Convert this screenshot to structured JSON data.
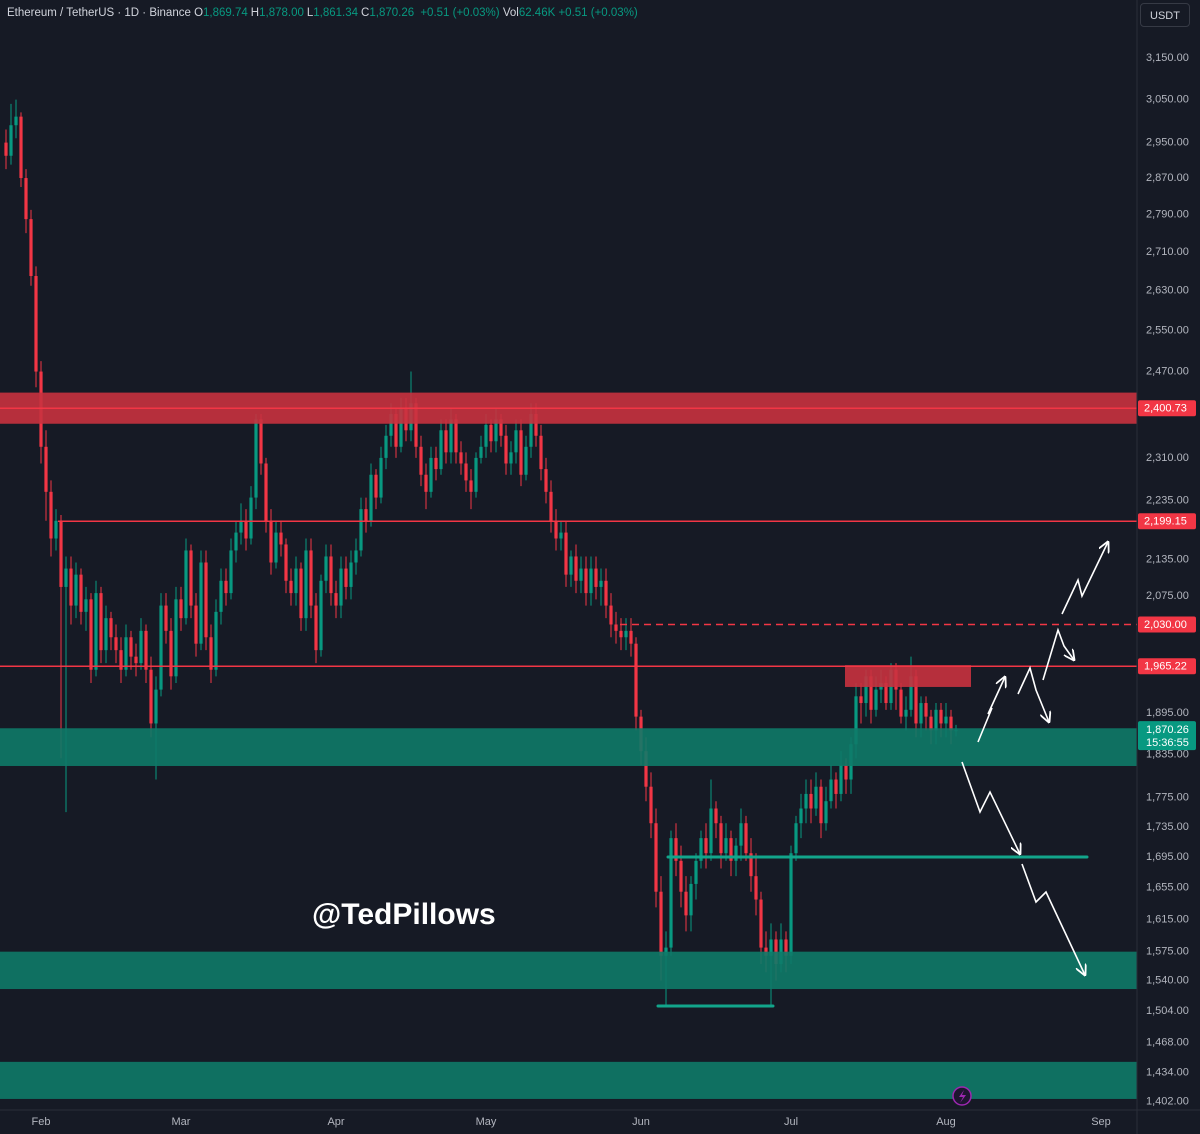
{
  "header": {
    "symbol": "Ethereum / TetherUS · 1D · Binance",
    "ohlc": [
      {
        "key": "O",
        "value": "1,869.74"
      },
      {
        "key": "H",
        "value": "1,878.00"
      },
      {
        "key": "L",
        "value": "1,861.34"
      },
      {
        "key": "C",
        "value": "1,870.26"
      }
    ],
    "change": "+0.51 (+0.03%)",
    "volume": {
      "key": "Vol",
      "value": "62.46K",
      "change": "+0.51 (+0.03%)"
    },
    "currency": "USDT"
  },
  "watermark": "@TedPillows",
  "chart_data": {
    "type": "candlestick",
    "log_scale": true,
    "up_color": "#089981",
    "down_color": "#f23645",
    "xlim": [
      -1.2,
      226.2
    ],
    "xticks": [
      {
        "value": 7,
        "label": "Feb"
      },
      {
        "value": 35,
        "label": "Mar"
      },
      {
        "value": 66,
        "label": "Apr"
      },
      {
        "value": 96,
        "label": "May"
      },
      {
        "value": 127,
        "label": "Jun"
      },
      {
        "value": 157,
        "label": "Jul"
      },
      {
        "value": 188,
        "label": "Aug"
      },
      {
        "value": 219,
        "label": "Sep"
      }
    ],
    "ylim": [
      1393,
      3295
    ],
    "yticks": [
      {
        "value": 3150,
        "label": "3,150.00"
      },
      {
        "value": 3050,
        "label": "3,050.00"
      },
      {
        "value": 2950,
        "label": "2,950.00"
      },
      {
        "value": 2870,
        "label": "2,870.00"
      },
      {
        "value": 2790,
        "label": "2,790.00"
      },
      {
        "value": 2710,
        "label": "2,710.00"
      },
      {
        "value": 2630,
        "label": "2,630.00"
      },
      {
        "value": 2550,
        "label": "2,550.00"
      },
      {
        "value": 2470,
        "label": "2,470.00"
      },
      {
        "value": 2310,
        "label": "2,310.00"
      },
      {
        "value": 2235,
        "label": "2,235.00"
      },
      {
        "value": 2135,
        "label": "2,135.00"
      },
      {
        "value": 2075,
        "label": "2,075.00"
      },
      {
        "value": 1895,
        "label": "1,895.00"
      },
      {
        "value": 1835,
        "label": "1,835.00"
      },
      {
        "value": 1775,
        "label": "1,775.00"
      },
      {
        "value": 1735,
        "label": "1,735.00"
      },
      {
        "value": 1695,
        "label": "1,695.00"
      },
      {
        "value": 1655,
        "label": "1,655.00"
      },
      {
        "value": 1615,
        "label": "1,615.00"
      },
      {
        "value": 1575,
        "label": "1,575.00"
      },
      {
        "value": 1540,
        "label": "1,540.00"
      },
      {
        "value": 1504,
        "label": "1,504.00"
      },
      {
        "value": 1468,
        "label": "1,468.00"
      },
      {
        "value": 1434,
        "label": "1,434.00"
      },
      {
        "value": 1402,
        "label": "1,402.00"
      }
    ],
    "open": [
      2950,
      2920,
      2990,
      3010,
      2870,
      2780,
      2660,
      2470,
      2330,
      2250,
      2170,
      2200,
      2090,
      2120,
      2060,
      2110,
      2050,
      2070,
      1960,
      2080,
      1990,
      2040,
      2010,
      1990,
      1960,
      2010,
      1980,
      1970,
      2020,
      1960,
      1880,
      1930,
      2060,
      2020,
      1950,
      2070,
      2040,
      2150,
      2060,
      2000,
      2130,
      2010,
      1960,
      2050,
      2100,
      2080,
      2150,
      2180,
      2200,
      2170,
      2240,
      2380,
      2300,
      2200,
      2130,
      2180,
      2160,
      2100,
      2080,
      2120,
      2040,
      2150,
      2060,
      1990,
      2100,
      2140,
      2080,
      2060,
      2120,
      2090,
      2130,
      2150,
      2220,
      2200,
      2280,
      2240,
      2310,
      2350,
      2390,
      2330,
      2400,
      2360,
      2410,
      2330,
      2280,
      2250,
      2310,
      2290,
      2360,
      2320,
      2380,
      2320,
      2300,
      2270,
      2250,
      2310,
      2330,
      2370,
      2340,
      2380,
      2350,
      2300,
      2320,
      2360,
      2280,
      2330,
      2390,
      2350,
      2290,
      2250,
      2200,
      2170,
      2180,
      2110,
      2140,
      2100,
      2120,
      2080,
      2120,
      2090,
      2100,
      2060,
      2030,
      2020,
      2010,
      2020,
      2000,
      1890,
      1840,
      1790,
      1740,
      1650,
      1570,
      1580,
      1720,
      1690,
      1650,
      1620,
      1660,
      1690,
      1720,
      1700,
      1760,
      1740,
      1700,
      1720,
      1690,
      1710,
      1740,
      1700,
      1670,
      1640,
      1580,
      1570,
      1590,
      1560,
      1590,
      1570,
      1700,
      1740,
      1760,
      1780,
      1760,
      1790,
      1740,
      1770,
      1800,
      1780,
      1820,
      1800,
      1850,
      1920,
      1910,
      1950,
      1900,
      1930,
      1940,
      1910,
      1960,
      1930,
      1890,
      1900,
      1950,
      1880,
      1910,
      1890,
      1870,
      1900,
      1880,
      1890,
      1869.74
    ],
    "high": [
      2980,
      3040,
      3050,
      3020,
      2890,
      2800,
      2680,
      2490,
      2360,
      2270,
      2220,
      2210,
      2140,
      2140,
      2130,
      2120,
      2090,
      2080,
      2100,
      2090,
      2060,
      2050,
      2030,
      2010,
      2030,
      2020,
      2000,
      2040,
      2030,
      1980,
      1950,
      2080,
      2080,
      2040,
      2090,
      2090,
      2170,
      2160,
      2080,
      2150,
      2150,
      2030,
      2070,
      2120,
      2120,
      2170,
      2200,
      2230,
      2220,
      2260,
      2390,
      2390,
      2310,
      2220,
      2200,
      2200,
      2170,
      2120,
      2140,
      2130,
      2170,
      2170,
      2080,
      2110,
      2160,
      2160,
      2100,
      2140,
      2140,
      2150,
      2170,
      2240,
      2240,
      2300,
      2290,
      2330,
      2370,
      2410,
      2400,
      2420,
      2420,
      2470,
      2420,
      2350,
      2300,
      2330,
      2330,
      2380,
      2380,
      2400,
      2390,
      2340,
      2320,
      2290,
      2320,
      2350,
      2390,
      2380,
      2400,
      2390,
      2370,
      2340,
      2380,
      2380,
      2350,
      2410,
      2410,
      2370,
      2310,
      2270,
      2220,
      2200,
      2200,
      2150,
      2160,
      2140,
      2140,
      2140,
      2140,
      2120,
      2120,
      2080,
      2050,
      2040,
      2040,
      2040,
      2010,
      1900,
      1860,
      1810,
      1760,
      1670,
      1600,
      1730,
      1740,
      1710,
      1670,
      1670,
      1700,
      1730,
      1740,
      1800,
      1770,
      1750,
      1740,
      1730,
      1720,
      1760,
      1750,
      1720,
      1700,
      1650,
      1600,
      1610,
      1600,
      1610,
      1600,
      1710,
      1750,
      1780,
      1800,
      1800,
      1810,
      1800,
      1790,
      1820,
      1810,
      1840,
      1830,
      1860,
      1940,
      1940,
      1960,
      1960,
      1950,
      1960,
      1950,
      1970,
      1970,
      1940,
      1920,
      1980,
      1960,
      1920,
      1920,
      1900,
      1910,
      1910,
      1910,
      1900,
      1878
    ],
    "low": [
      2890,
      2900,
      2960,
      2850,
      2750,
      2640,
      2440,
      2300,
      2200,
      2140,
      2150,
      1830,
      1755,
      2030,
      2040,
      2030,
      2020,
      1940,
      1950,
      1970,
      1970,
      1990,
      1970,
      1940,
      1950,
      1960,
      1950,
      1960,
      1940,
      1860,
      1800,
      1920,
      2000,
      1930,
      1940,
      2020,
      2030,
      2040,
      1980,
      1990,
      1990,
      1940,
      1950,
      2030,
      2060,
      2070,
      2130,
      2160,
      2150,
      2160,
      2220,
      2280,
      2180,
      2110,
      2120,
      2140,
      2080,
      2060,
      2060,
      2020,
      2020,
      2040,
      1970,
      1980,
      2080,
      2060,
      2040,
      2040,
      2070,
      2070,
      2110,
      2140,
      2180,
      2190,
      2220,
      2230,
      2290,
      2330,
      2310,
      2320,
      2340,
      2340,
      2310,
      2260,
      2220,
      2240,
      2270,
      2280,
      2300,
      2300,
      2300,
      2280,
      2250,
      2220,
      2240,
      2300,
      2310,
      2320,
      2320,
      2330,
      2280,
      2280,
      2300,
      2260,
      2270,
      2310,
      2330,
      2270,
      2230,
      2180,
      2150,
      2150,
      2090,
      2090,
      2080,
      2080,
      2060,
      2060,
      2070,
      2060,
      2040,
      2010,
      2000,
      1990,
      1990,
      1980,
      1870,
      1820,
      1770,
      1720,
      1630,
      1540,
      1510,
      1570,
      1670,
      1630,
      1600,
      1600,
      1640,
      1680,
      1680,
      1690,
      1720,
      1680,
      1690,
      1670,
      1670,
      1690,
      1690,
      1650,
      1620,
      1560,
      1550,
      1510,
      1540,
      1550,
      1550,
      1560,
      1690,
      1720,
      1740,
      1740,
      1750,
      1720,
      1730,
      1760,
      1760,
      1770,
      1780,
      1780,
      1830,
      1880,
      1890,
      1880,
      1890,
      1910,
      1900,
      1900,
      1900,
      1880,
      1870,
      1890,
      1860,
      1860,
      1870,
      1850,
      1850,
      1860,
      1860,
      1850,
      1861.34
    ],
    "close": [
      2920,
      2990,
      3010,
      2870,
      2780,
      2660,
      2470,
      2330,
      2250,
      2170,
      2200,
      2090,
      2120,
      2060,
      2110,
      2050,
      2070,
      1960,
      2080,
      1990,
      2040,
      2010,
      1990,
      1960,
      2010,
      1980,
      1970,
      2020,
      1960,
      1880,
      1930,
      2060,
      2020,
      1950,
      2070,
      2040,
      2150,
      2060,
      2000,
      2130,
      2010,
      1960,
      2050,
      2100,
      2080,
      2150,
      2180,
      2200,
      2170,
      2240,
      2380,
      2300,
      2200,
      2130,
      2180,
      2160,
      2100,
      2080,
      2120,
      2040,
      2150,
      2060,
      1990,
      2100,
      2140,
      2080,
      2060,
      2120,
      2090,
      2130,
      2150,
      2220,
      2200,
      2280,
      2240,
      2310,
      2350,
      2390,
      2330,
      2400,
      2360,
      2410,
      2330,
      2280,
      2250,
      2310,
      2290,
      2360,
      2320,
      2380,
      2320,
      2300,
      2270,
      2250,
      2310,
      2330,
      2370,
      2340,
      2380,
      2350,
      2300,
      2320,
      2360,
      2280,
      2330,
      2390,
      2350,
      2290,
      2250,
      2200,
      2170,
      2180,
      2110,
      2140,
      2100,
      2120,
      2080,
      2120,
      2090,
      2100,
      2060,
      2030,
      2020,
      2010,
      2020,
      2000,
      1890,
      1840,
      1790,
      1740,
      1650,
      1570,
      1580,
      1720,
      1690,
      1650,
      1620,
      1660,
      1690,
      1720,
      1700,
      1760,
      1740,
      1700,
      1720,
      1690,
      1710,
      1740,
      1700,
      1670,
      1640,
      1580,
      1570,
      1590,
      1560,
      1590,
      1570,
      1700,
      1740,
      1760,
      1780,
      1760,
      1790,
      1740,
      1770,
      1800,
      1780,
      1820,
      1800,
      1850,
      1920,
      1910,
      1950,
      1900,
      1930,
      1940,
      1910,
      1960,
      1930,
      1890,
      1900,
      1950,
      1880,
      1910,
      1890,
      1870,
      1900,
      1880,
      1890,
      1870,
      1870.26
    ],
    "zones": [
      {
        "low": 2372,
        "high": 2430,
        "color": "#c8323f"
      },
      {
        "low": 1934,
        "high": 1967,
        "color": "#c8323f"
      },
      {
        "low": 1819,
        "high": 1873,
        "color": "#0e7a68"
      },
      {
        "low": 1530,
        "high": 1575,
        "color": "#0e7a68"
      },
      {
        "low": 1405,
        "high": 1446,
        "color": "#0e7a68"
      }
    ],
    "trendlines": [
      {
        "value": 1695,
        "color": "#12a58b"
      },
      {
        "value": 1510,
        "color": "#12a58b"
      }
    ],
    "levels": [
      {
        "value": 2400.73,
        "label": "2,400.73"
      },
      {
        "value": 2199.15,
        "label": "2,199.15"
      },
      {
        "value": 2030,
        "label": "2,030.00",
        "style": "dashed"
      },
      {
        "value": 1965.22,
        "label": "1,965.22"
      }
    ],
    "level_color": "#f23645",
    "last_price": {
      "value": 1870.26,
      "label": "1,870.26",
      "countdown": "15:36:55"
    }
  }
}
